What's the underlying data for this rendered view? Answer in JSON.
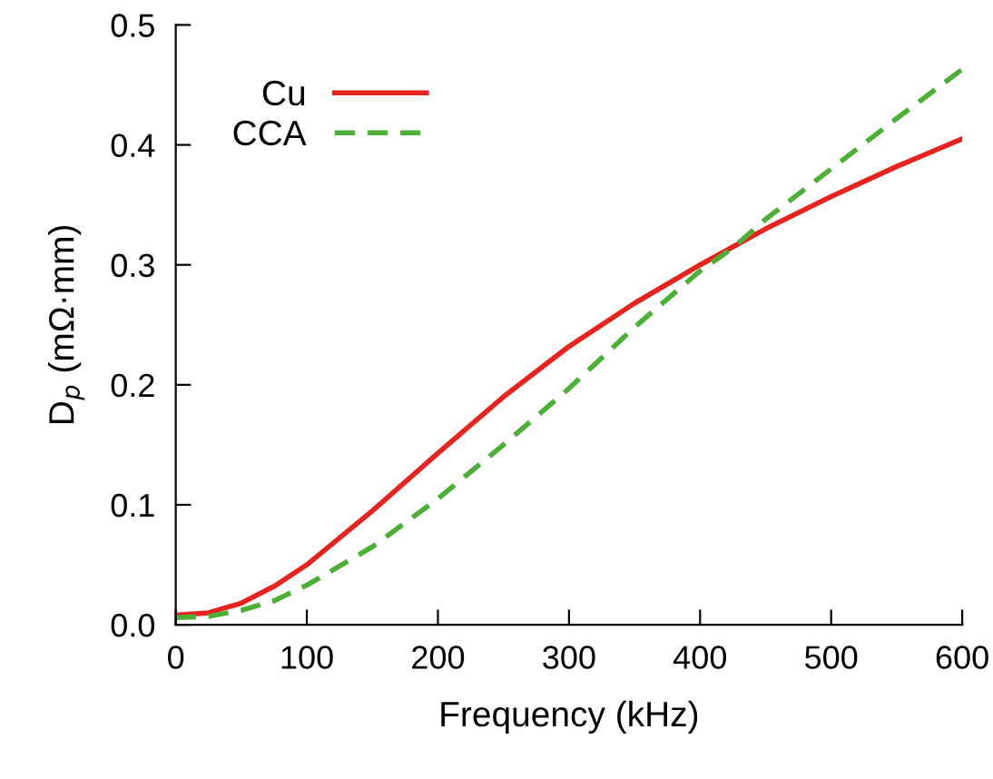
{
  "chart_data": {
    "type": "line",
    "xlabel": "Frequency (kHz)",
    "ylabel": "D$_{p}$ (mΩ·mm)",
    "xlim": [
      0,
      600
    ],
    "ylim": [
      0,
      0.5
    ],
    "xticks": [
      0,
      100,
      200,
      300,
      400,
      500,
      600
    ],
    "yticks": [
      {
        "value": 0,
        "label": "0.0"
      },
      0.1,
      0.2,
      0.3,
      0.4,
      0.5
    ],
    "legend": "top left",
    "grid": false,
    "series": [
      {
        "name": "Cu",
        "color": "#e8231e",
        "line_style": "solid",
        "x": [
          0,
          25,
          50,
          75,
          100,
          150,
          200,
          250,
          300,
          350,
          400,
          450,
          500,
          550,
          600
        ],
        "values": [
          0.008,
          0.01,
          0.018,
          0.032,
          0.05,
          0.095,
          0.143,
          0.19,
          0.232,
          0.268,
          0.3,
          0.33,
          0.357,
          0.382,
          0.405
        ]
      },
      {
        "name": "CCA",
        "color": "#4caf36",
        "line_style": "dashed",
        "x": [
          0,
          25,
          50,
          75,
          100,
          150,
          200,
          250,
          300,
          350,
          400,
          425,
          450,
          500,
          550,
          600
        ],
        "values": [
          0.006,
          0.007,
          0.012,
          0.02,
          0.033,
          0.065,
          0.105,
          0.15,
          0.197,
          0.248,
          0.295,
          0.314,
          0.338,
          0.38,
          0.422,
          0.463
        ]
      }
    ]
  }
}
